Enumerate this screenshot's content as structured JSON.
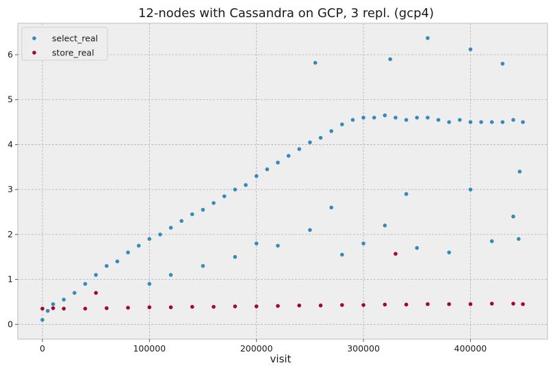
{
  "chart_data": {
    "type": "scatter",
    "title": "12-nodes with Cassandra on GCP, 3 repl. (gcp4)",
    "xlabel": "visit",
    "ylabel": "",
    "xlim": [
      -23000,
      472000
    ],
    "ylim": [
      -0.33,
      6.7
    ],
    "xticks": [
      0,
      100000,
      200000,
      300000,
      400000
    ],
    "yticks": [
      0,
      1,
      2,
      3,
      4,
      5,
      6
    ],
    "grid": true,
    "legend_position": "top-left",
    "series": [
      {
        "name": "select_real",
        "color": "#348abd",
        "points": [
          [
            0,
            0.1
          ],
          [
            5000,
            0.3
          ],
          [
            10000,
            0.45
          ],
          [
            20000,
            0.55
          ],
          [
            30000,
            0.7
          ],
          [
            40000,
            0.9
          ],
          [
            50000,
            1.1
          ],
          [
            60000,
            1.3
          ],
          [
            70000,
            1.4
          ],
          [
            80000,
            1.6
          ],
          [
            90000,
            1.75
          ],
          [
            100000,
            1.9
          ],
          [
            110000,
            2.0
          ],
          [
            120000,
            2.15
          ],
          [
            130000,
            2.3
          ],
          [
            140000,
            2.45
          ],
          [
            150000,
            2.55
          ],
          [
            160000,
            2.7
          ],
          [
            170000,
            2.85
          ],
          [
            180000,
            3.0
          ],
          [
            190000,
            3.1
          ],
          [
            200000,
            3.3
          ],
          [
            210000,
            3.45
          ],
          [
            220000,
            3.6
          ],
          [
            230000,
            3.75
          ],
          [
            240000,
            3.9
          ],
          [
            250000,
            4.05
          ],
          [
            260000,
            4.15
          ],
          [
            270000,
            4.3
          ],
          [
            280000,
            4.45
          ],
          [
            290000,
            4.55
          ],
          [
            300000,
            4.6
          ],
          [
            310000,
            4.6
          ],
          [
            320000,
            4.65
          ],
          [
            330000,
            4.6
          ],
          [
            340000,
            4.55
          ],
          [
            350000,
            4.6
          ],
          [
            360000,
            4.6
          ],
          [
            370000,
            4.55
          ],
          [
            380000,
            4.5
          ],
          [
            390000,
            4.55
          ],
          [
            400000,
            4.5
          ],
          [
            410000,
            4.5
          ],
          [
            420000,
            4.5
          ],
          [
            430000,
            4.5
          ],
          [
            440000,
            4.55
          ],
          [
            449000,
            4.5
          ],
          [
            255000,
            5.82
          ],
          [
            325000,
            5.9
          ],
          [
            360000,
            6.37
          ],
          [
            400000,
            6.12
          ],
          [
            430000,
            5.8
          ],
          [
            150000,
            1.3
          ],
          [
            180000,
            1.5
          ],
          [
            220000,
            1.75
          ],
          [
            250000,
            2.1
          ],
          [
            280000,
            1.55
          ],
          [
            300000,
            1.8
          ],
          [
            320000,
            2.2
          ],
          [
            350000,
            1.7
          ],
          [
            380000,
            1.6
          ],
          [
            420000,
            1.85
          ],
          [
            440000,
            2.4
          ],
          [
            445000,
            1.9
          ],
          [
            100000,
            0.9
          ],
          [
            120000,
            1.1
          ],
          [
            200000,
            1.8
          ],
          [
            270000,
            2.6
          ],
          [
            340000,
            2.9
          ],
          [
            400000,
            3.0
          ],
          [
            446000,
            3.4
          ]
        ]
      },
      {
        "name": "store_real",
        "color": "#a60628",
        "points": [
          [
            0,
            0.35
          ],
          [
            10000,
            0.36
          ],
          [
            20000,
            0.35
          ],
          [
            40000,
            0.35
          ],
          [
            50000,
            0.7
          ],
          [
            60000,
            0.36
          ],
          [
            80000,
            0.37
          ],
          [
            100000,
            0.38
          ],
          [
            120000,
            0.38
          ],
          [
            140000,
            0.39
          ],
          [
            160000,
            0.39
          ],
          [
            180000,
            0.4
          ],
          [
            200000,
            0.4
          ],
          [
            220000,
            0.41
          ],
          [
            240000,
            0.42
          ],
          [
            260000,
            0.42
          ],
          [
            280000,
            0.43
          ],
          [
            300000,
            0.43
          ],
          [
            320000,
            0.44
          ],
          [
            330000,
            1.57
          ],
          [
            340000,
            0.44
          ],
          [
            360000,
            0.45
          ],
          [
            380000,
            0.45
          ],
          [
            400000,
            0.45
          ],
          [
            420000,
            0.46
          ],
          [
            440000,
            0.46
          ],
          [
            449000,
            0.45
          ]
        ]
      }
    ]
  }
}
